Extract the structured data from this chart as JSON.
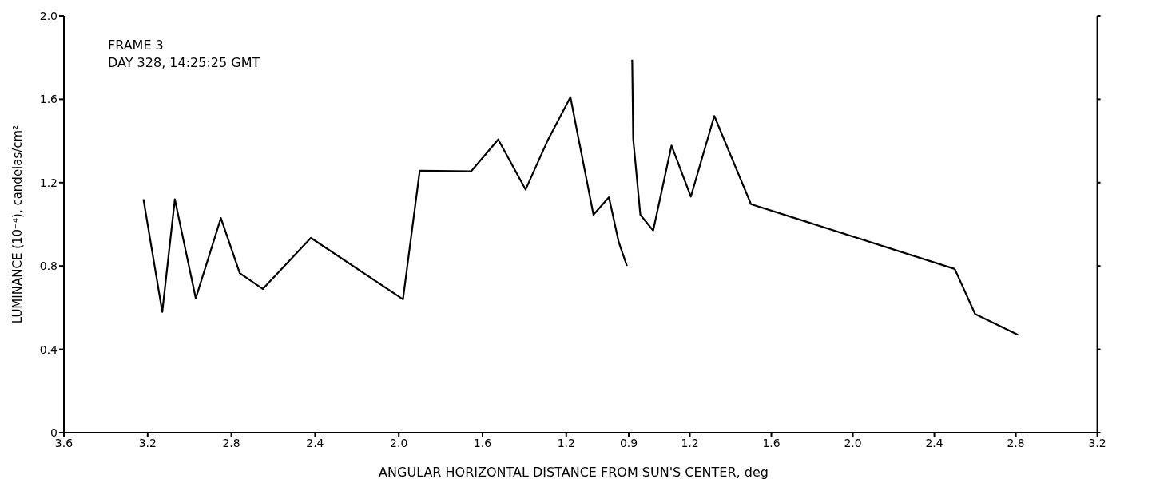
{
  "chart_data": [
    {
      "type": "line",
      "xlabel": "ANGULAR HORIZONTAL DISTANCE FROM SUN'S CENTER, deg",
      "ylabel": "LUMINANCE (10⁻⁴), candelas/cm²",
      "annotations": [
        "FRAME 3",
        "DAY 328, 14:25:25 GMT"
      ],
      "x": [
        3.22,
        3.13,
        3.07,
        2.97,
        2.85,
        2.76,
        2.65,
        2.42,
        1.98,
        1.9,
        1.655,
        1.525,
        1.394,
        1.29,
        1.18,
        1.07,
        0.996,
        0.949,
        0.91
      ],
      "series": [
        {
          "color": "#000000",
          "values": [
            1.12,
            0.58,
            1.12,
            0.645,
            1.03,
            0.766,
            0.69,
            0.935,
            0.64,
            1.257,
            1.254,
            1.407,
            1.167,
            1.4,
            1.61,
            1.046,
            1.13,
            0.914,
            0.8
          ]
        }
      ],
      "xlim": [
        3.6,
        0.9
      ],
      "xticks": [
        3.6,
        3.2,
        2.8,
        2.4,
        {
          "value": 2,
          "label": "2.0"
        },
        1.6,
        1.2
      ],
      "ylim": [
        0,
        2
      ],
      "yticks": [
        0,
        0.4,
        0.8,
        1.2,
        1.6,
        {
          "value": 2,
          "label": "2.0"
        }
      ],
      "line_style": "solid"
    },
    {
      "type": "line",
      "x": [
        0.917,
        0.922,
        0.957,
        1.02,
        1.11,
        1.205,
        1.32,
        1.5,
        2.5,
        2.6,
        2.81
      ],
      "series": [
        {
          "color": "#000000",
          "values": [
            1.79,
            1.41,
            1.046,
            0.97,
            1.378,
            1.133,
            1.52,
            1.097,
            0.786,
            0.57,
            0.47
          ]
        }
      ],
      "xlim": [
        0.9,
        3.2
      ],
      "xticks": [
        0.9,
        1.2,
        1.6,
        {
          "value": 2,
          "label": "2.0"
        },
        2.4,
        2.8,
        3.2
      ],
      "ylim": [
        0,
        2
      ],
      "tick_labels": "x",
      "line_style": "solid"
    }
  ]
}
